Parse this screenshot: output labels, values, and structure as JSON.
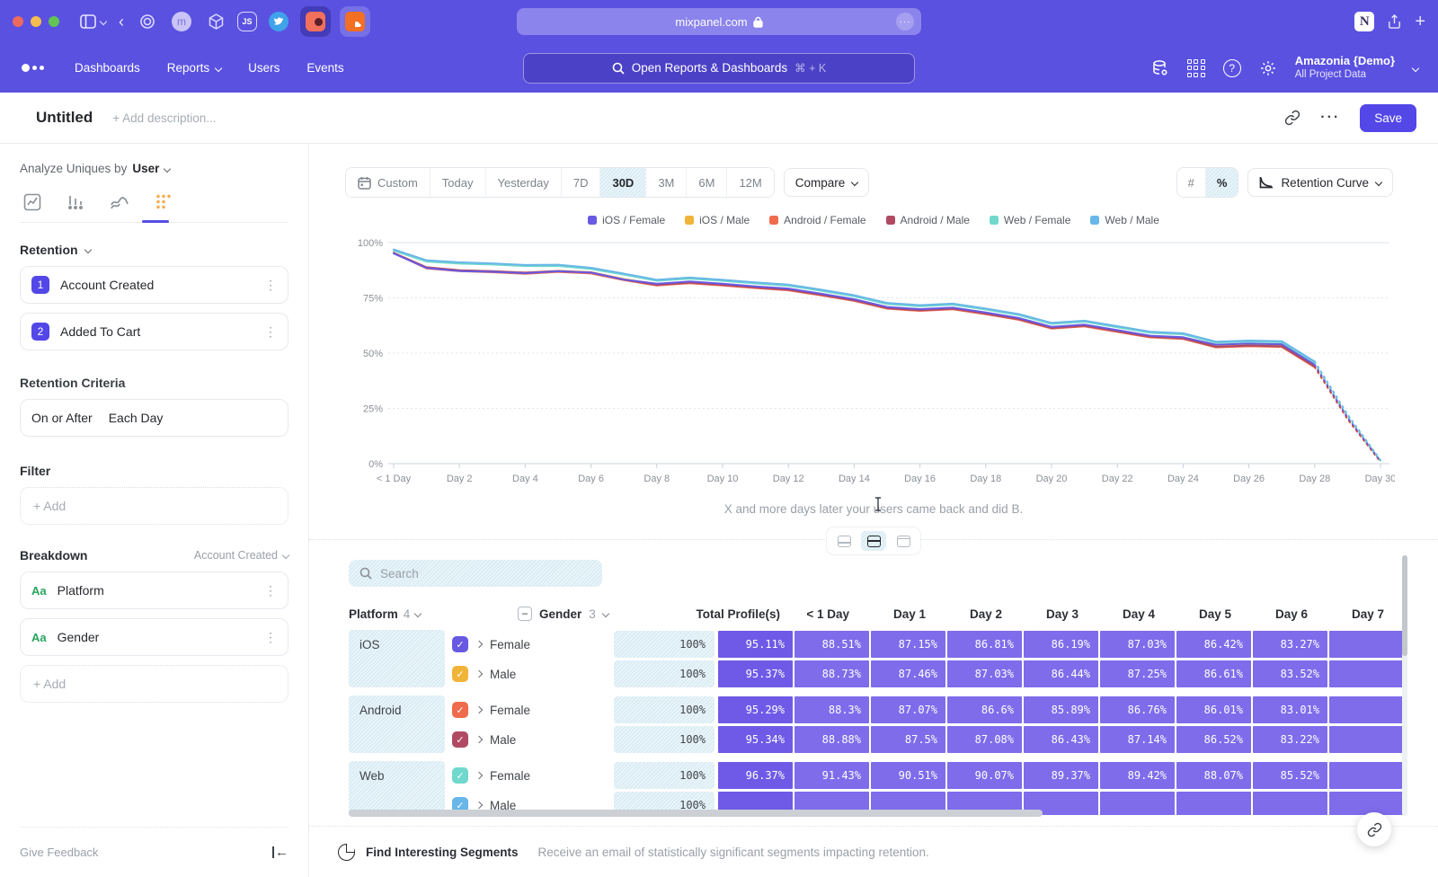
{
  "browser": {
    "url": "mixpanel.com",
    "more_glyph": "···"
  },
  "nav": {
    "items": [
      {
        "label": "Dashboards",
        "chevron": false
      },
      {
        "label": "Reports",
        "chevron": true
      },
      {
        "label": "Users",
        "chevron": false
      },
      {
        "label": "Events",
        "chevron": false
      }
    ],
    "search_placeholder": "Open Reports & Dashboards",
    "search_shortcut": "⌘ + K",
    "account_name": "Amazonia {Demo}",
    "account_scope": "All Project Data"
  },
  "titlebar": {
    "title": "Untitled",
    "description_placeholder": "+ Add description...",
    "save_label": "Save"
  },
  "sidebar": {
    "analyze_label": "Analyze Uniques by",
    "analyze_value": "User",
    "retention_header": "Retention",
    "steps": [
      {
        "num": "1",
        "label": "Account Created"
      },
      {
        "num": "2",
        "label": "Added To Cart"
      }
    ],
    "criteria_label": "Retention Criteria",
    "criteria_value_1": "On or After",
    "criteria_value_2": "Each Day",
    "filter_label": "Filter",
    "add_label": "+ Add",
    "breakdown_label": "Breakdown",
    "breakdown_scope": "Account Created",
    "breakdowns": [
      {
        "type": "Aa",
        "label": "Platform"
      },
      {
        "type": "Aa",
        "label": "Gender"
      }
    ],
    "feedback_label": "Give Feedback"
  },
  "controls": {
    "ranges": [
      "Custom",
      "Today",
      "Yesterday",
      "7D",
      "30D",
      "3M",
      "6M",
      "12M"
    ],
    "active_range": "30D",
    "compare_label": "Compare",
    "units": [
      "#",
      "%"
    ],
    "active_unit": "%",
    "chart_selector": "Retention Curve"
  },
  "chart_data": {
    "type": "line",
    "ylabel": "",
    "xlabel": "",
    "ylim": [
      0,
      100
    ],
    "ytick_labels": [
      "0%",
      "25%",
      "50%",
      "75%",
      "100%"
    ],
    "xtick_labels": [
      "< 1 Day",
      "Day 2",
      "Day 4",
      "Day 6",
      "Day 8",
      "Day 10",
      "Day 12",
      "Day 14",
      "Day 16",
      "Day 18",
      "Day 20",
      "Day 22",
      "Day 24",
      "Day 26",
      "Day 28",
      "Day 30"
    ],
    "x_days": [
      0,
      1,
      2,
      3,
      4,
      5,
      6,
      7,
      8,
      9,
      10,
      11,
      12,
      13,
      14,
      15,
      16,
      17,
      18,
      19,
      20,
      21,
      22,
      23,
      24,
      25,
      26,
      27,
      28,
      29,
      30
    ],
    "dashed_from_day": 28,
    "grid": true,
    "legend_position": "top",
    "caption": "X and more days later your users came back and did B.",
    "series": [
      {
        "name": "iOS / Female",
        "color": "#6859e3",
        "values": [
          95.11,
          88.51,
          87.15,
          86.81,
          86.19,
          87.03,
          86.42,
          83.27,
          81.4,
          82.4,
          81.4,
          80.2,
          79.2,
          76.9,
          74.4,
          70.9,
          69.9,
          70.6,
          68.4,
          65.9,
          61.9,
          62.9,
          60.4,
          57.9,
          57.2,
          53.8,
          54.3,
          54.0,
          44.8,
          21.0,
          1.2
        ]
      },
      {
        "name": "iOS / Male",
        "color": "#f0b438",
        "values": [
          95.37,
          88.73,
          87.46,
          87.03,
          86.44,
          87.25,
          86.61,
          83.52,
          81.2,
          82.2,
          81.2,
          80.0,
          79.0,
          76.7,
          74.2,
          70.7,
          69.7,
          70.4,
          68.2,
          65.7,
          61.7,
          62.7,
          60.2,
          57.7,
          57.0,
          53.4,
          53.9,
          53.6,
          44.4,
          20.6,
          1.0
        ]
      },
      {
        "name": "Android / Female",
        "color": "#ef6b4d",
        "values": [
          95.29,
          88.3,
          87.07,
          86.6,
          85.89,
          86.76,
          86.01,
          83.01,
          80.6,
          81.6,
          80.6,
          79.4,
          78.4,
          76.1,
          73.6,
          70.1,
          69.1,
          69.8,
          67.6,
          65.1,
          61.1,
          62.1,
          59.6,
          57.1,
          56.4,
          52.6,
          53.1,
          52.8,
          43.6,
          20.0,
          0.8
        ]
      },
      {
        "name": "Android / Male",
        "color": "#b04a62",
        "values": [
          95.34,
          88.88,
          87.5,
          87.08,
          86.43,
          87.14,
          86.52,
          83.22,
          80.9,
          81.9,
          80.9,
          79.7,
          78.7,
          76.4,
          73.9,
          70.4,
          69.4,
          70.1,
          67.9,
          65.4,
          61.4,
          62.4,
          59.9,
          57.4,
          56.7,
          52.9,
          53.4,
          53.1,
          44.0,
          20.3,
          0.9
        ]
      },
      {
        "name": "Web / Female",
        "color": "#70d8cc",
        "values": [
          96.37,
          91.43,
          90.51,
          90.07,
          89.37,
          89.42,
          88.07,
          85.52,
          82.7,
          83.7,
          82.7,
          81.5,
          80.5,
          78.2,
          75.7,
          72.2,
          71.2,
          71.9,
          69.7,
          67.2,
          63.2,
          64.2,
          61.7,
          59.2,
          58.5,
          54.7,
          55.2,
          54.9,
          45.7,
          21.7,
          1.4
        ]
      },
      {
        "name": "Web / Male",
        "color": "#68b7e8",
        "values": [
          96.9,
          92.0,
          91.1,
          90.6,
          89.9,
          90.0,
          88.6,
          86.0,
          83.2,
          84.2,
          83.2,
          82.0,
          81.0,
          78.7,
          76.2,
          72.7,
          71.7,
          72.4,
          70.2,
          67.7,
          63.7,
          64.7,
          62.2,
          59.7,
          59.0,
          55.2,
          55.7,
          55.4,
          46.2,
          22.2,
          1.6
        ]
      }
    ]
  },
  "table": {
    "search_placeholder": "Search",
    "platform_col": "Platform",
    "platform_count": "4",
    "gender_col": "Gender",
    "gender_count": "3",
    "total_col": "Total Profile(s)",
    "day_columns": [
      "< 1 Day",
      "Day 1",
      "Day 2",
      "Day 3",
      "Day 4",
      "Day 5",
      "Day 6",
      "Day 7"
    ],
    "groups": [
      {
        "platform": "iOS",
        "rows": [
          {
            "gender": "Female",
            "color": "#6859e3",
            "total": "100%",
            "values": [
              "95.11%",
              "88.51%",
              "87.15%",
              "86.81%",
              "86.19%",
              "87.03%",
              "86.42%",
              "83.27%"
            ]
          },
          {
            "gender": "Male",
            "color": "#f0b438",
            "total": "100%",
            "values": [
              "95.37%",
              "88.73%",
              "87.46%",
              "87.03%",
              "86.44%",
              "87.25%",
              "86.61%",
              "83.52%"
            ]
          }
        ]
      },
      {
        "platform": "Android",
        "rows": [
          {
            "gender": "Female",
            "color": "#ef6b4d",
            "total": "100%",
            "values": [
              "95.29%",
              "88.3%",
              "87.07%",
              "86.6%",
              "85.89%",
              "86.76%",
              "86.01%",
              "83.01%"
            ]
          },
          {
            "gender": "Male",
            "color": "#b04a62",
            "total": "100%",
            "values": [
              "95.34%",
              "88.88%",
              "87.5%",
              "87.08%",
              "86.43%",
              "87.14%",
              "86.52%",
              "83.22%"
            ]
          }
        ]
      },
      {
        "platform": "Web",
        "rows": [
          {
            "gender": "Female",
            "color": "#70d8cc",
            "total": "100%",
            "values": [
              "96.37%",
              "91.43%",
              "90.51%",
              "90.07%",
              "89.37%",
              "89.42%",
              "88.07%",
              "85.52%"
            ]
          },
          {
            "gender": "Male",
            "color": "#68b7e8",
            "total": "100%",
            "values": [
              "",
              "",
              "",
              "",
              "",
              "",
              "",
              ""
            ]
          }
        ]
      }
    ]
  },
  "footer": {
    "segments_title": "Find Interesting Segments",
    "segments_desc": "Receive an email of statistically significant segments impacting retention."
  },
  "colors": {
    "header_purple": "#5a51e1",
    "accent": "#5347e8",
    "cell_purple": "#7e6ceb",
    "cell_purple_first": "#6f5ae7",
    "active_tab_orange": "#f6a94b",
    "breakdown_green": "#27a55f"
  }
}
